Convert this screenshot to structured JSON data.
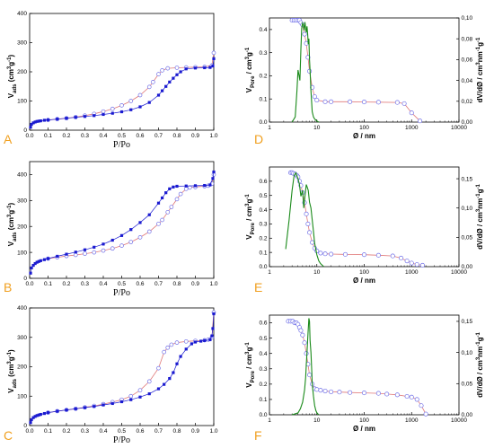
{
  "figure": {
    "panel_letters": [
      "A",
      "B",
      "C",
      "D",
      "E",
      "F"
    ],
    "colors": {
      "adsorption": "#1a1ad0",
      "desorption_marker": "#7070e8",
      "desorption_line": "#e07878",
      "psd_line": "#1a8a1a",
      "cumulative_marker": "#7070e8",
      "cumulative_line": "#e07878",
      "panel_letter": "#f0a020"
    }
  },
  "chart_data": [
    {
      "id": "A",
      "type": "line",
      "xlabel": "P/Po",
      "ylabel": "V_ads (cm³g⁻¹)",
      "xlim": [
        0,
        1
      ],
      "ylim": [
        0,
        400
      ],
      "xticks": [
        "0.0",
        "0.1",
        "0.2",
        "0.3",
        "0.4",
        "0.5",
        "0.6",
        "0.7",
        "0.8",
        "0.9",
        "1.0"
      ],
      "yticks": [
        "0",
        "100",
        "200",
        "300",
        "400"
      ],
      "series": [
        {
          "role": "adsorption",
          "x": [
            0.005,
            0.01,
            0.02,
            0.03,
            0.04,
            0.05,
            0.06,
            0.08,
            0.1,
            0.15,
            0.2,
            0.25,
            0.3,
            0.35,
            0.4,
            0.45,
            0.5,
            0.55,
            0.6,
            0.65,
            0.7,
            0.72,
            0.74,
            0.76,
            0.78,
            0.8,
            0.82,
            0.85,
            0.9,
            0.95,
            0.98,
            0.995,
            1.0
          ],
          "y": [
            10,
            20,
            25,
            28,
            30,
            31,
            32,
            34,
            35,
            38,
            41,
            44,
            47,
            50,
            54,
            58,
            63,
            70,
            80,
            95,
            120,
            135,
            150,
            165,
            178,
            190,
            200,
            210,
            213,
            214,
            215,
            220,
            245
          ]
        },
        {
          "role": "desorption",
          "x": [
            1.0,
            0.99,
            0.95,
            0.9,
            0.85,
            0.8,
            0.75,
            0.72,
            0.7,
            0.67,
            0.65,
            0.6,
            0.55,
            0.5,
            0.45,
            0.4,
            0.35,
            0.3,
            0.25,
            0.2,
            0.15,
            0.1
          ],
          "y": [
            265,
            222,
            217,
            216,
            215,
            214,
            212,
            205,
            192,
            165,
            148,
            120,
            100,
            85,
            73,
            64,
            56,
            50,
            45,
            41,
            38,
            35
          ]
        }
      ]
    },
    {
      "id": "B",
      "type": "line",
      "xlabel": "P/Po",
      "ylabel": "V_ads (cm³g⁻¹)",
      "xlim": [
        0,
        1
      ],
      "ylim": [
        0,
        450
      ],
      "xticks": [
        "0.0",
        "0.1",
        "0.2",
        "0.3",
        "0.4",
        "0.5",
        "0.6",
        "0.7",
        "0.8",
        "0.9",
        "1.0"
      ],
      "yticks": [
        "0",
        "100",
        "200",
        "300",
        "400"
      ],
      "series": [
        {
          "role": "adsorption",
          "x": [
            0.005,
            0.01,
            0.02,
            0.03,
            0.04,
            0.05,
            0.06,
            0.08,
            0.1,
            0.15,
            0.2,
            0.25,
            0.3,
            0.35,
            0.4,
            0.45,
            0.5,
            0.55,
            0.6,
            0.65,
            0.7,
            0.72,
            0.74,
            0.76,
            0.78,
            0.8,
            0.85,
            0.9,
            0.95,
            0.98,
            0.995,
            1.0
          ],
          "y": [
            20,
            40,
            50,
            57,
            62,
            65,
            68,
            72,
            76,
            85,
            93,
            101,
            110,
            120,
            132,
            147,
            165,
            188,
            215,
            245,
            290,
            310,
            330,
            345,
            352,
            355,
            356,
            357,
            358,
            360,
            385,
            410
          ]
        },
        {
          "role": "desorption",
          "x": [
            1.0,
            0.99,
            0.97,
            0.95,
            0.9,
            0.87,
            0.85,
            0.82,
            0.8,
            0.77,
            0.75,
            0.72,
            0.7,
            0.65,
            0.6,
            0.55,
            0.5,
            0.45,
            0.4,
            0.35,
            0.3,
            0.25,
            0.2,
            0.15,
            0.1
          ],
          "y": [
            400,
            365,
            357,
            355,
            352,
            350,
            345,
            325,
            305,
            275,
            255,
            225,
            210,
            180,
            158,
            140,
            126,
            115,
            107,
            100,
            95,
            90,
            86,
            81,
            76
          ]
        }
      ]
    },
    {
      "id": "C",
      "type": "line",
      "xlabel": "P/Po",
      "ylabel": "V_ads (cm³g⁻¹)",
      "xlim": [
        0,
        1
      ],
      "ylim": [
        0,
        400
      ],
      "xticks": [
        "0.0",
        "0.1",
        "0.2",
        "0.3",
        "0.4",
        "0.5",
        "0.6",
        "0.7",
        "0.8",
        "0.9",
        "1.0"
      ],
      "yticks": [
        "0",
        "100",
        "200",
        "300",
        "400"
      ],
      "series": [
        {
          "role": "adsorption",
          "x": [
            0.005,
            0.01,
            0.02,
            0.03,
            0.04,
            0.05,
            0.06,
            0.08,
            0.1,
            0.15,
            0.2,
            0.25,
            0.3,
            0.35,
            0.4,
            0.45,
            0.5,
            0.55,
            0.6,
            0.65,
            0.7,
            0.73,
            0.76,
            0.78,
            0.8,
            0.82,
            0.85,
            0.88,
            0.9,
            0.93,
            0.95,
            0.98,
            0.99,
            0.995,
            1.0
          ],
          "y": [
            10,
            20,
            27,
            31,
            34,
            36,
            38,
            41,
            44,
            49,
            53,
            57,
            61,
            65,
            70,
            75,
            81,
            88,
            97,
            108,
            125,
            140,
            160,
            180,
            210,
            235,
            260,
            278,
            284,
            287,
            289,
            292,
            305,
            330,
            380
          ]
        },
        {
          "role": "desorption",
          "x": [
            1.0,
            0.99,
            0.97,
            0.95,
            0.9,
            0.85,
            0.8,
            0.77,
            0.75,
            0.73,
            0.7,
            0.65,
            0.6,
            0.55,
            0.5,
            0.45,
            0.4,
            0.35,
            0.3,
            0.25,
            0.2,
            0.15,
            0.1
          ],
          "y": [
            385,
            300,
            292,
            290,
            288,
            286,
            282,
            275,
            265,
            250,
            195,
            150,
            120,
            100,
            88,
            80,
            73,
            67,
            62,
            57,
            53,
            49,
            44
          ]
        }
      ]
    },
    {
      "id": "D",
      "type": "line",
      "xlabel": "Ø / nm",
      "ylabel_left": "V_Pore / cm³g⁻¹",
      "ylabel_right": "dV/dØ / cm³nm⁻¹g⁻¹",
      "x_scale": "log",
      "xlim": [
        1,
        10000
      ],
      "xticks": [
        "1",
        "10",
        "100",
        "1000",
        "10000"
      ],
      "ylim_left": [
        0,
        0.45
      ],
      "yticks_left": [
        "0.0",
        "0.1",
        "0.2",
        "0.3",
        "0.4"
      ],
      "ylim_right": [
        0,
        0.1
      ],
      "yticks_right": [
        "0,00",
        "0,02",
        "0,04",
        "0,06",
        "0,08",
        "0,10"
      ],
      "series": [
        {
          "role": "cumulative_pore_volume",
          "axis": "left",
          "x": [
            3,
            3.3,
            3.6,
            4,
            4.3,
            4.6,
            5,
            5.5,
            6,
            6.5,
            7,
            8,
            9,
            10,
            15,
            20,
            50,
            100,
            200,
            500,
            700,
            1000,
            1500
          ],
          "y": [
            0.44,
            0.44,
            0.44,
            0.44,
            0.44,
            0.43,
            0.42,
            0.38,
            0.34,
            0.28,
            0.22,
            0.15,
            0.11,
            0.095,
            0.088,
            0.088,
            0.088,
            0.087,
            0.086,
            0.085,
            0.08,
            0.04,
            0.005
          ]
        },
        {
          "role": "pore_size_distribution",
          "axis": "right",
          "x": [
            3,
            3.5,
            3.8,
            4,
            4.2,
            4.4,
            4.6,
            4.8,
            5,
            5.2,
            5.4,
            5.6,
            5.8,
            6,
            6.2,
            6.4,
            6.6,
            6.8,
            7,
            7.2,
            7.5,
            8,
            8.5,
            9,
            9.5,
            10,
            11
          ],
          "y": [
            0,
            0.005,
            0.03,
            0.05,
            0.045,
            0.04,
            0.07,
            0.09,
            0.095,
            0.093,
            0.088,
            0.096,
            0.09,
            0.086,
            0.092,
            0.085,
            0.075,
            0.08,
            0.06,
            0.05,
            0.03,
            0.01,
            0.005,
            0.003,
            0.002,
            0.001,
            0
          ]
        }
      ]
    },
    {
      "id": "E",
      "type": "line",
      "xlabel": "Ø / nm",
      "ylabel_left": "V_Pore / cm³g⁻¹",
      "ylabel_right": "dV/dØ / cm³nm⁻¹g⁻¹",
      "x_scale": "log",
      "xlim": [
        1,
        10000
      ],
      "xticks": [
        "1",
        "10",
        "100",
        "1000",
        "10000"
      ],
      "ylim_left": [
        0,
        0.7
      ],
      "yticks_left": [
        "0.0",
        "0.1",
        "0.2",
        "0.3",
        "0.4",
        "0.5",
        "0.6"
      ],
      "ylim_right": [
        0,
        0.17
      ],
      "yticks_right": [
        "0,00",
        "0,05",
        "0,10",
        "0,15"
      ],
      "series": [
        {
          "role": "cumulative_pore_volume",
          "axis": "left",
          "x": [
            2.8,
            3,
            3.2,
            3.5,
            3.8,
            4,
            4.3,
            4.6,
            5,
            5.5,
            6,
            6.5,
            7,
            8,
            9,
            10,
            12,
            15,
            20,
            40,
            100,
            200,
            400,
            600,
            800,
            1000,
            1300,
            1700
          ],
          "y": [
            0.66,
            0.66,
            0.655,
            0.65,
            0.64,
            0.63,
            0.6,
            0.57,
            0.52,
            0.45,
            0.37,
            0.3,
            0.24,
            0.17,
            0.13,
            0.11,
            0.095,
            0.09,
            0.088,
            0.086,
            0.084,
            0.08,
            0.075,
            0.06,
            0.04,
            0.025,
            0.015,
            0.01
          ]
        },
        {
          "role": "pore_size_distribution",
          "axis": "right",
          "x": [
            2.2,
            2.6,
            3,
            3.3,
            3.6,
            4,
            4.3,
            4.6,
            5,
            5.3,
            5.6,
            6,
            6.3,
            6.6,
            7,
            7.5,
            8,
            8.5,
            9,
            10,
            11,
            12,
            14
          ],
          "y": [
            0.03,
            0.08,
            0.13,
            0.155,
            0.16,
            0.15,
            0.14,
            0.12,
            0.13,
            0.1,
            0.12,
            0.14,
            0.135,
            0.13,
            0.11,
            0.1,
            0.08,
            0.06,
            0.04,
            0.02,
            0.01,
            0.005,
            0
          ]
        }
      ]
    },
    {
      "id": "F",
      "type": "line",
      "xlabel": "Ø / nm",
      "ylabel_left": "V_Pore / cm³g⁻¹",
      "ylabel_right": "dV/dØ / cm³nm⁻¹g⁻¹",
      "x_scale": "log",
      "xlim": [
        1,
        10000
      ],
      "xticks": [
        "1",
        "10",
        "100",
        "1000",
        "10000"
      ],
      "ylim_left": [
        0,
        0.65
      ],
      "yticks_left": [
        "0.0",
        "0.1",
        "0.2",
        "0.3",
        "0.4",
        "0.5",
        "0.6"
      ],
      "ylim_right": [
        0,
        0.16
      ],
      "yticks_right": [
        "0,00",
        "0,05",
        "0,10",
        "0,15"
      ],
      "series": [
        {
          "role": "cumulative_pore_volume",
          "axis": "left",
          "x": [
            2.5,
            2.8,
            3.1,
            3.4,
            3.7,
            4,
            4.3,
            4.6,
            5,
            5.5,
            6,
            6.5,
            7,
            8,
            9,
            10,
            12,
            15,
            20,
            30,
            50,
            100,
            200,
            300,
            500,
            800,
            1000,
            1300,
            1600,
            2000
          ],
          "y": [
            0.61,
            0.61,
            0.61,
            0.6,
            0.6,
            0.59,
            0.57,
            0.55,
            0.52,
            0.47,
            0.4,
            0.33,
            0.26,
            0.2,
            0.17,
            0.165,
            0.16,
            0.155,
            0.15,
            0.148,
            0.145,
            0.143,
            0.14,
            0.135,
            0.13,
            0.12,
            0.115,
            0.1,
            0.06,
            0.005
          ]
        },
        {
          "role": "pore_size_distribution",
          "axis": "right",
          "x": [
            3,
            4,
            4.5,
            5,
            5.5,
            5.8,
            6,
            6.2,
            6.5,
            6.8,
            7,
            7.2,
            7.5,
            7.8,
            8,
            8.5,
            9,
            9.5,
            10,
            11
          ],
          "y": [
            0,
            0.003,
            0.01,
            0.02,
            0.04,
            0.06,
            0.08,
            0.1,
            0.13,
            0.155,
            0.15,
            0.12,
            0.1,
            0.07,
            0.05,
            0.03,
            0.015,
            0.007,
            0.003,
            0
          ]
        }
      ]
    }
  ]
}
